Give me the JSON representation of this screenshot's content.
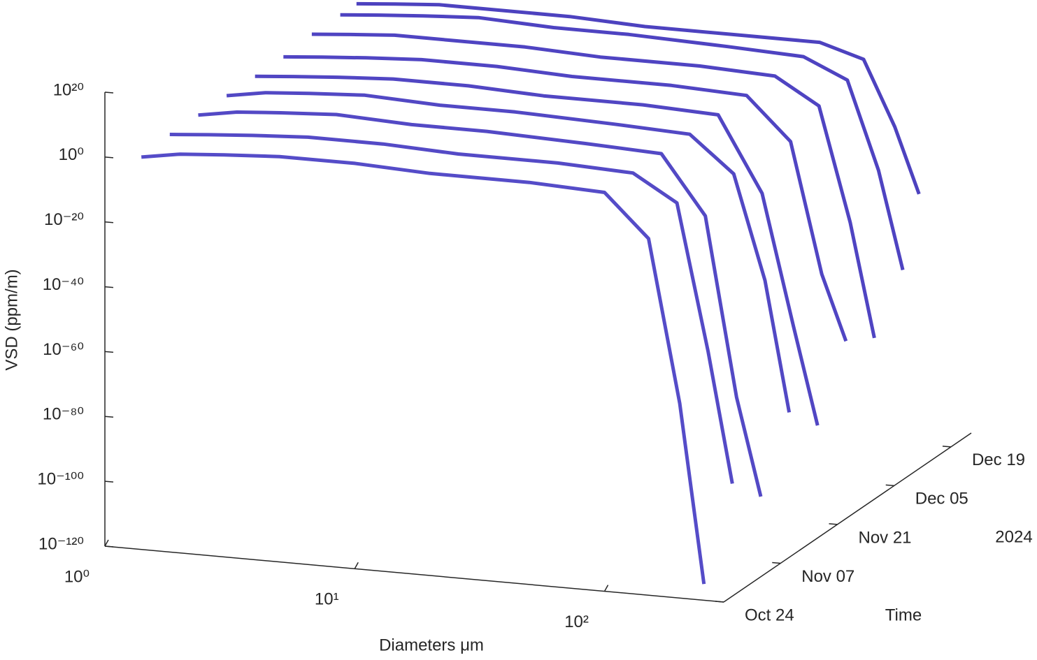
{
  "chart_data": {
    "type": "surface3d",
    "xlabel": "Diameters μm",
    "ylabel": "Time",
    "zlabel": "VSD (ppm/m)",
    "time_offset_label": "2024",
    "xscale": "log",
    "zscale": "log",
    "xlim": [
      1,
      300
    ],
    "xticks": [
      {
        "value": 1,
        "label": "10⁰"
      },
      {
        "value": 10,
        "label": "10¹"
      },
      {
        "value": 100,
        "label": "10²"
      }
    ],
    "ylim": [
      "2024-10-24",
      "2024-12-24"
    ],
    "yticks": [
      {
        "value": "2024-10-24",
        "label": "Oct 24"
      },
      {
        "value": "2024-11-07",
        "label": "Nov 07"
      },
      {
        "value": "2024-11-21",
        "label": "Nov 21"
      },
      {
        "value": "2024-12-05",
        "label": "Dec 05"
      },
      {
        "value": "2024-12-19",
        "label": "Dec 19"
      }
    ],
    "zlim": [
      1e-120,
      1e+20
    ],
    "zticks": [
      {
        "value": 1e+20,
        "label": "10²⁰"
      },
      {
        "value": 1,
        "label": "10⁰"
      },
      {
        "value": 1e-20,
        "label": "10⁻²⁰"
      },
      {
        "value": 1e-40,
        "label": "10⁻⁴⁰"
      },
      {
        "value": 1e-60,
        "label": "10⁻⁶⁰"
      },
      {
        "value": 1e-80,
        "label": "10⁻⁸⁰"
      },
      {
        "value": 1e-100,
        "label": "10⁻¹⁰⁰"
      },
      {
        "value": 1e-120,
        "label": "10⁻¹²⁰"
      }
    ],
    "diameters": [
      1.4,
      2,
      3,
      5,
      10,
      20,
      50,
      100,
      150,
      200,
      250
    ],
    "series": [
      {
        "time": "2024-12-16",
        "color": "#3a2db8",
        "values": [
          1000.0,
          10000.0,
          100000.0,
          100000.0,
          100000.0,
          10000.0,
          10000.0,
          10000.0,
          1,
          1e-20,
          1e-40
        ]
      },
      {
        "time": "2024-12-12",
        "color": "#3b2fba",
        "values": [
          1000.0,
          10000.0,
          100000.0,
          1000000.0,
          100000.0,
          100000.0,
          10000.0,
          1000.0,
          0.001,
          1e-30,
          1e-60
        ]
      },
      {
        "time": "2024-12-05",
        "color": "#3c30bb",
        "values": [
          1000.0,
          10000.0,
          100000.0,
          100000.0,
          100000.0,
          10000.0,
          10000.0,
          1000.0,
          1e-05,
          1e-40,
          1e-75
        ]
      },
      {
        "time": "2024-11-28",
        "color": "#3d31bc",
        "values": [
          100.0,
          1000.0,
          10000.0,
          100000.0,
          100000.0,
          10000.0,
          10000.0,
          1000.0,
          1e-10,
          1e-50,
          1e-70
        ]
      },
      {
        "time": "2024-11-21",
        "color": "#3e32bd",
        "values": [
          100.0,
          1000.0,
          10000.0,
          100000.0,
          100000.0,
          10000.0,
          10000.0,
          1000.0,
          1e-20,
          1e-60,
          1e-90
        ]
      },
      {
        "time": "2024-11-14",
        "color": "#3f34be",
        "values": [
          100.0,
          10000.0,
          100000.0,
          1000000.0,
          100000.0,
          100000.0,
          10000.0,
          1000.0,
          1e-08,
          1e-40,
          1e-80
        ]
      },
      {
        "time": "2024-11-07",
        "color": "#4035bf",
        "values": [
          100.0,
          10000.0,
          100000.0,
          1000000.0,
          100000.0,
          100000.0,
          10000.0,
          1000.0,
          1e-15,
          1e-70,
          1e-100
        ]
      },
      {
        "time": "2024-10-31",
        "color": "#4136c0",
        "values": [
          100.0,
          1000.0,
          10000.0,
          100000.0,
          100000.0,
          10000.0,
          10000.0,
          1000.0,
          1e-05,
          1e-50,
          1e-90
        ]
      },
      {
        "time": "2024-10-24",
        "color": "#4238c2",
        "values": [
          10.0,
          1000.0,
          10000.0,
          100000.0,
          100000.0,
          10000.0,
          10000.0,
          1000.0,
          1e-10,
          1e-60,
          1e-115
        ]
      }
    ]
  }
}
